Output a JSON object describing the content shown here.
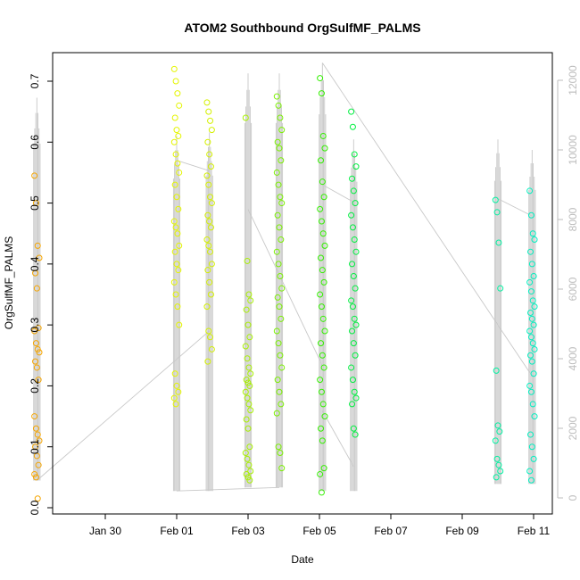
{
  "chart_data": {
    "type": "scatter",
    "title": "ATOM2 Southbound OrgSulfMF_PALMS",
    "xlabel": "Date",
    "ylabel": "OrgSulfMF_PALMS",
    "ylim": [
      0.0,
      0.7
    ],
    "xlim": [
      "Jan 27 12:00",
      "Feb 11 12:00"
    ],
    "x_ticks": [
      "Jan 30",
      "Feb 01",
      "Feb 03",
      "Feb 05",
      "Feb 07",
      "Feb 09",
      "Feb 11"
    ],
    "y_ticks": [
      "0.0",
      "0.1",
      "0.2",
      "0.3",
      "0.4",
      "0.5",
      "0.6",
      "0.7"
    ],
    "y2_ticks": [
      "0",
      "2000",
      "4000",
      "6000",
      "8000",
      "10000",
      "12000"
    ],
    "y2_range": [
      0,
      12000
    ],
    "grid": false,
    "legend": "none",
    "colors": {
      "altitude_line": "#c8c8c8",
      "flight1": "#f5a500",
      "flight2": "#e4f500",
      "flight3": "#c9f500",
      "flight4": "#99ff00",
      "flight5": "#66ff00",
      "flight6": "#33ff33",
      "flight7": "#00ff66",
      "flight8": "#00ffcc",
      "flight9": "#00ffc0"
    },
    "series": [
      {
        "color": "#f5a500",
        "x": [
          "Jan 28 02:00",
          "Jan 28 02:00",
          "Jan 28 02:00",
          "Jan 28 02:00",
          "Jan 28 02:00",
          "Jan 28 02:00",
          "Jan 28 02:00",
          "Jan 28 02:00",
          "Jan 28 02:00",
          "Jan 28 02:00",
          "Jan 28 02:00",
          "Jan 28 02:00",
          "Jan 28 02:00",
          "Jan 28 02:00",
          "Jan 28 02:00",
          "Jan 28 02:00",
          "Jan 28 02:00",
          "Jan 28 02:00",
          "Jan 28 02:00",
          "Jan 28 02:00",
          "Jan 28 02:00",
          "Jan 28 02:00",
          "Jan 28 02:00",
          "Jan 28 02:00"
        ],
        "y": [
          0.545,
          0.5,
          0.43,
          0.41,
          0.385,
          0.36,
          0.295,
          0.29,
          0.27,
          0.26,
          0.255,
          0.24,
          0.23,
          0.21,
          0.15,
          0.13,
          0.12,
          0.11,
          0.1,
          0.085,
          0.07,
          0.055,
          0.05,
          0.015
        ]
      },
      {
        "color": "#e4f500",
        "x": [
          "Feb 01 00:00",
          "Feb 01 00:00",
          "Feb 01 00:00",
          "Feb 01 00:00",
          "Feb 01 00:00",
          "Feb 01 00:00",
          "Feb 01 00:00",
          "Feb 01 00:00",
          "Feb 01 00:00",
          "Feb 01 00:00",
          "Feb 01 00:00",
          "Feb 01 00:00",
          "Feb 01 00:00",
          "Feb 01 00:00",
          "Feb 01 00:00",
          "Feb 01 00:00",
          "Feb 01 00:00",
          "Feb 01 00:00",
          "Feb 01 00:00",
          "Feb 01 00:00",
          "Feb 01 00:00",
          "Feb 01 00:00",
          "Feb 01 00:00",
          "Feb 01 00:00",
          "Feb 01 00:00",
          "Feb 01 00:00",
          "Feb 01 00:00",
          "Feb 01 00:00",
          "Feb 01 00:00",
          "Feb 01 00:00"
        ],
        "y": [
          0.72,
          0.7,
          0.68,
          0.66,
          0.64,
          0.62,
          0.61,
          0.6,
          0.58,
          0.565,
          0.55,
          0.53,
          0.51,
          0.49,
          0.47,
          0.46,
          0.45,
          0.43,
          0.42,
          0.4,
          0.39,
          0.37,
          0.35,
          0.33,
          0.3,
          0.22,
          0.2,
          0.19,
          0.18,
          0.17
        ]
      },
      {
        "color": "#d4f000",
        "x": [
          "Feb 01 22:00",
          "Feb 01 22:00",
          "Feb 01 22:00",
          "Feb 01 22:00",
          "Feb 01 22:00",
          "Feb 01 22:00",
          "Feb 01 22:00",
          "Feb 01 22:00",
          "Feb 01 22:00",
          "Feb 01 22:00",
          "Feb 01 22:00",
          "Feb 01 22:00",
          "Feb 01 22:00",
          "Feb 01 22:00",
          "Feb 01 22:00",
          "Feb 01 22:00",
          "Feb 01 22:00",
          "Feb 01 22:00",
          "Feb 01 22:00",
          "Feb 01 22:00",
          "Feb 01 22:00",
          "Feb 01 22:00",
          "Feb 01 22:00",
          "Feb 01 22:00",
          "Feb 01 22:00",
          "Feb 01 22:00"
        ],
        "y": [
          0.665,
          0.65,
          0.635,
          0.62,
          0.6,
          0.58,
          0.56,
          0.545,
          0.53,
          0.51,
          0.5,
          0.48,
          0.47,
          0.46,
          0.44,
          0.43,
          0.42,
          0.4,
          0.39,
          0.37,
          0.35,
          0.33,
          0.29,
          0.28,
          0.26,
          0.24
        ]
      },
      {
        "color": "#a8f000",
        "x": [
          "Feb 03 00:00",
          "Feb 03 00:00",
          "Feb 03 00:00",
          "Feb 03 00:00",
          "Feb 03 00:00",
          "Feb 03 00:00",
          "Feb 03 00:00",
          "Feb 03 00:00",
          "Feb 03 00:00",
          "Feb 03 00:00",
          "Feb 03 00:00",
          "Feb 03 00:00",
          "Feb 03 00:00",
          "Feb 03 00:00",
          "Feb 03 00:00",
          "Feb 03 00:00",
          "Feb 03 00:00",
          "Feb 03 00:00",
          "Feb 03 00:00",
          "Feb 03 00:00",
          "Feb 03 00:00",
          "Feb 03 00:00",
          "Feb 03 00:00",
          "Feb 03 00:00",
          "Feb 03 00:00",
          "Feb 03 00:00",
          "Feb 03 00:00",
          "Feb 03 00:00"
        ],
        "y": [
          0.64,
          0.405,
          0.35,
          0.34,
          0.325,
          0.3,
          0.28,
          0.265,
          0.245,
          0.23,
          0.22,
          0.21,
          0.205,
          0.2,
          0.19,
          0.18,
          0.17,
          0.16,
          0.145,
          0.13,
          0.1,
          0.09,
          0.08,
          0.07,
          0.06,
          0.055,
          0.05,
          0.045
        ]
      },
      {
        "color": "#7af000",
        "x": [
          "Feb 03 21:00",
          "Feb 03 21:00",
          "Feb 03 21:00",
          "Feb 03 21:00",
          "Feb 03 21:00",
          "Feb 03 21:00",
          "Feb 03 21:00",
          "Feb 03 21:00",
          "Feb 03 21:00",
          "Feb 03 21:00",
          "Feb 03 21:00",
          "Feb 03 21:00",
          "Feb 03 21:00",
          "Feb 03 21:00",
          "Feb 03 21:00",
          "Feb 03 21:00",
          "Feb 03 21:00",
          "Feb 03 21:00",
          "Feb 03 21:00",
          "Feb 03 21:00",
          "Feb 03 21:00",
          "Feb 03 21:00",
          "Feb 03 21:00",
          "Feb 03 21:00",
          "Feb 03 21:00",
          "Feb 03 21:00",
          "Feb 03 21:00",
          "Feb 03 21:00",
          "Feb 03 21:00",
          "Feb 03 21:00",
          "Feb 03 21:00",
          "Feb 03 21:00"
        ],
        "y": [
          0.675,
          0.66,
          0.64,
          0.62,
          0.6,
          0.59,
          0.57,
          0.55,
          0.53,
          0.51,
          0.5,
          0.48,
          0.46,
          0.44,
          0.42,
          0.4,
          0.38,
          0.36,
          0.345,
          0.33,
          0.31,
          0.29,
          0.27,
          0.25,
          0.23,
          0.21,
          0.19,
          0.17,
          0.155,
          0.1,
          0.09,
          0.065
        ]
      },
      {
        "color": "#33f000",
        "x": [
          "Feb 05 02:00",
          "Feb 05 02:00",
          "Feb 05 02:00",
          "Feb 05 02:00",
          "Feb 05 02:00",
          "Feb 05 02:00",
          "Feb 05 02:00",
          "Feb 05 02:00",
          "Feb 05 02:00",
          "Feb 05 02:00",
          "Feb 05 02:00",
          "Feb 05 02:00",
          "Feb 05 02:00",
          "Feb 05 02:00",
          "Feb 05 02:00",
          "Feb 05 02:00",
          "Feb 05 02:00",
          "Feb 05 02:00",
          "Feb 05 02:00",
          "Feb 05 02:00",
          "Feb 05 02:00",
          "Feb 05 02:00",
          "Feb 05 02:00",
          "Feb 05 02:00",
          "Feb 05 02:00",
          "Feb 05 02:00",
          "Feb 05 02:00",
          "Feb 05 02:00",
          "Feb 05 02:00",
          "Feb 05 02:00"
        ],
        "y": [
          0.705,
          0.68,
          0.61,
          0.59,
          0.57,
          0.535,
          0.51,
          0.49,
          0.47,
          0.45,
          0.43,
          0.41,
          0.39,
          0.37,
          0.35,
          0.33,
          0.31,
          0.29,
          0.27,
          0.25,
          0.23,
          0.21,
          0.19,
          0.17,
          0.15,
          0.13,
          0.11,
          0.065,
          0.055,
          0.025
        ]
      },
      {
        "color": "#00f040",
        "x": [
          "Feb 05 23:00",
          "Feb 05 23:00",
          "Feb 05 23:00",
          "Feb 05 23:00",
          "Feb 05 23:00",
          "Feb 05 23:00",
          "Feb 05 23:00",
          "Feb 05 23:00",
          "Feb 05 23:00",
          "Feb 05 23:00",
          "Feb 05 23:00",
          "Feb 05 23:00",
          "Feb 05 23:00",
          "Feb 05 23:00",
          "Feb 05 23:00",
          "Feb 05 23:00",
          "Feb 05 23:00",
          "Feb 05 23:00",
          "Feb 05 23:00",
          "Feb 05 23:00",
          "Feb 05 23:00",
          "Feb 05 23:00",
          "Feb 05 23:00",
          "Feb 05 23:00",
          "Feb 05 23:00",
          "Feb 05 23:00",
          "Feb 05 23:00",
          "Feb 05 23:00"
        ],
        "y": [
          0.65,
          0.625,
          0.58,
          0.56,
          0.54,
          0.52,
          0.5,
          0.48,
          0.46,
          0.44,
          0.42,
          0.4,
          0.38,
          0.36,
          0.34,
          0.33,
          0.31,
          0.3,
          0.29,
          0.27,
          0.25,
          0.23,
          0.21,
          0.19,
          0.18,
          0.17,
          0.13,
          0.12
        ]
      },
      {
        "color": "#00f0a0",
        "x": [
          "Feb 10 00:00",
          "Feb 10 00:00",
          "Feb 10 00:00",
          "Feb 10 00:00",
          "Feb 10 00:00",
          "Feb 10 00:00",
          "Feb 10 00:00",
          "Feb 10 00:00",
          "Feb 10 00:00",
          "Feb 10 00:00",
          "Feb 10 00:00",
          "Feb 10 00:00"
        ],
        "y": [
          0.505,
          0.485,
          0.435,
          0.36,
          0.225,
          0.135,
          0.125,
          0.11,
          0.08,
          0.07,
          0.06,
          0.05
        ]
      },
      {
        "color": "#00f0c0",
        "x": [
          "Feb 10 23:00",
          "Feb 10 23:00",
          "Feb 10 23:00",
          "Feb 10 23:00",
          "Feb 10 23:00",
          "Feb 10 23:00",
          "Feb 10 23:00",
          "Feb 10 23:00",
          "Feb 10 23:00",
          "Feb 10 23:00",
          "Feb 10 23:00",
          "Feb 10 23:00",
          "Feb 10 23:00",
          "Feb 10 23:00",
          "Feb 10 23:00",
          "Feb 10 23:00",
          "Feb 10 23:00",
          "Feb 10 23:00",
          "Feb 10 23:00",
          "Feb 10 23:00",
          "Feb 10 23:00",
          "Feb 10 23:00",
          "Feb 10 23:00",
          "Feb 10 23:00",
          "Feb 10 23:00",
          "Feb 10 23:00",
          "Feb 10 23:00",
          "Feb 10 23:00",
          "Feb 10 23:00",
          "Feb 10 23:00"
        ],
        "y": [
          0.52,
          0.48,
          0.45,
          0.44,
          0.42,
          0.4,
          0.38,
          0.37,
          0.355,
          0.34,
          0.33,
          0.32,
          0.31,
          0.3,
          0.29,
          0.28,
          0.27,
          0.26,
          0.25,
          0.24,
          0.22,
          0.2,
          0.19,
          0.17,
          0.15,
          0.12,
          0.1,
          0.08,
          0.06,
          0.045
        ]
      }
    ],
    "altitude_y2_ranges": [
      {
        "x": "Jan 28 02:00",
        "min": 500,
        "max": 11500
      },
      {
        "x": "Feb 01 00:00",
        "min": 200,
        "max": 10400
      },
      {
        "x": "Feb 01 22:00",
        "min": 200,
        "max": 10500
      },
      {
        "x": "Feb 03 00:00",
        "min": 300,
        "max": 12200
      },
      {
        "x": "Feb 03 21:00",
        "min": 300,
        "max": 12200
      },
      {
        "x": "Feb 05 02:00",
        "min": 200,
        "max": 12500
      },
      {
        "x": "Feb 05 23:00",
        "min": 200,
        "max": 10300
      },
      {
        "x": "Feb 10 00:00",
        "min": 400,
        "max": 10300
      },
      {
        "x": "Feb 10 23:00",
        "min": 400,
        "max": 10000
      }
    ],
    "transit_lines_y2": [
      {
        "from_x": "Jan 28 02:00",
        "from": 500,
        "to_x": "Feb 01 22:00",
        "to": 4800
      },
      {
        "from_x": "Feb 01 00:00",
        "from": 200,
        "to_x": "Feb 03 21:00",
        "to": 300
      },
      {
        "from_x": "Feb 01 00:00",
        "from": 9700,
        "to_x": "Feb 01 22:00",
        "to": 9400
      },
      {
        "from_x": "Feb 03 00:00",
        "from": 8300,
        "to_x": "Feb 05 02:00",
        "to": 3800
      },
      {
        "from_x": "Feb 05 02:00",
        "from": 9000,
        "to_x": "Feb 05 23:00",
        "to": 8500
      },
      {
        "from_x": "Feb 05 02:00",
        "from": 12500,
        "to_x": "Feb 10 23:00",
        "to": 3500
      },
      {
        "from_x": "Feb 05 02:00",
        "from": 2500,
        "to_x": "Feb 05 23:00",
        "to": 900
      },
      {
        "from_x": "Feb 10 00:00",
        "from": 8600,
        "to_x": "Feb 10 23:00",
        "to": 8100
      }
    ]
  }
}
